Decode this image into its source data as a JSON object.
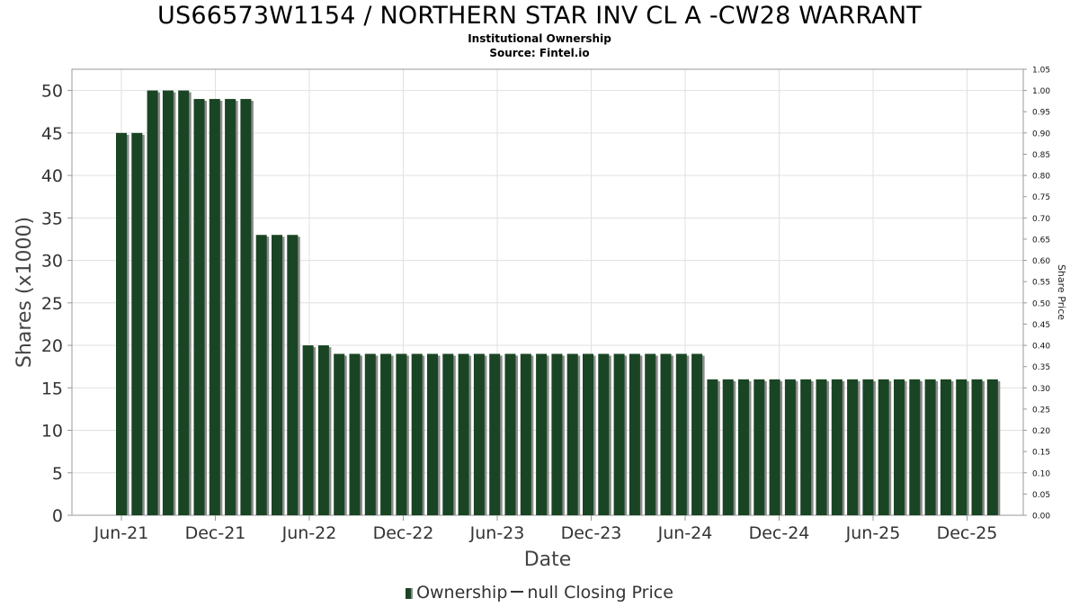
{
  "header": {
    "title": "US66573W1154 / NORTHERN STAR INV CL A -CW28 WARRANT",
    "subtitle": "Institutional Ownership",
    "source": "Source: Fintel.io"
  },
  "legend": {
    "ownership_label": "Ownership",
    "price_label": "null Closing Price"
  },
  "colors": {
    "bar": "#1a4524",
    "bar_shadow": "#8c8c8c",
    "grid": "#e0e0e0"
  },
  "chart_data": {
    "type": "bar",
    "title": "US66573W1154 / NORTHERN STAR INV CL A -CW28 WARRANT",
    "xlabel": "Date",
    "ylabel": "Shares (x1000)",
    "y2label": "Share Price",
    "ylim": [
      0,
      52.5
    ],
    "y2lim": [
      0,
      1.05
    ],
    "yticks": [
      "0",
      "5",
      "10",
      "15",
      "20",
      "25",
      "30",
      "35",
      "40",
      "45",
      "50"
    ],
    "y2ticks": [
      "0.00",
      "0.05",
      "0.10",
      "0.15",
      "0.20",
      "0.25",
      "0.30",
      "0.35",
      "0.40",
      "0.45",
      "0.50",
      "0.55",
      "0.60",
      "0.65",
      "0.70",
      "0.75",
      "0.80",
      "0.85",
      "0.90",
      "0.95",
      "1.00",
      "1.05"
    ],
    "xticks": [
      "Jun-21",
      "Dec-21",
      "Jun-22",
      "Dec-22",
      "Jun-23",
      "Dec-23",
      "Jun-24",
      "Dec-24",
      "Jun-25",
      "Dec-25"
    ],
    "legend_position": "bottom",
    "grid": true,
    "series": [
      {
        "name": "Ownership",
        "values": [
          45,
          45,
          50,
          50,
          50,
          49,
          49,
          49,
          49,
          33,
          33,
          33,
          20,
          20,
          19,
          19,
          19,
          19,
          19,
          19,
          19,
          19,
          19,
          19,
          19,
          19,
          19,
          19,
          19,
          19,
          19,
          19,
          19,
          19,
          19,
          19,
          19,
          19,
          16,
          16,
          16,
          16,
          16,
          16,
          16,
          16,
          16,
          16,
          16,
          16,
          16,
          16,
          16,
          16,
          16,
          16,
          16
        ]
      }
    ]
  }
}
